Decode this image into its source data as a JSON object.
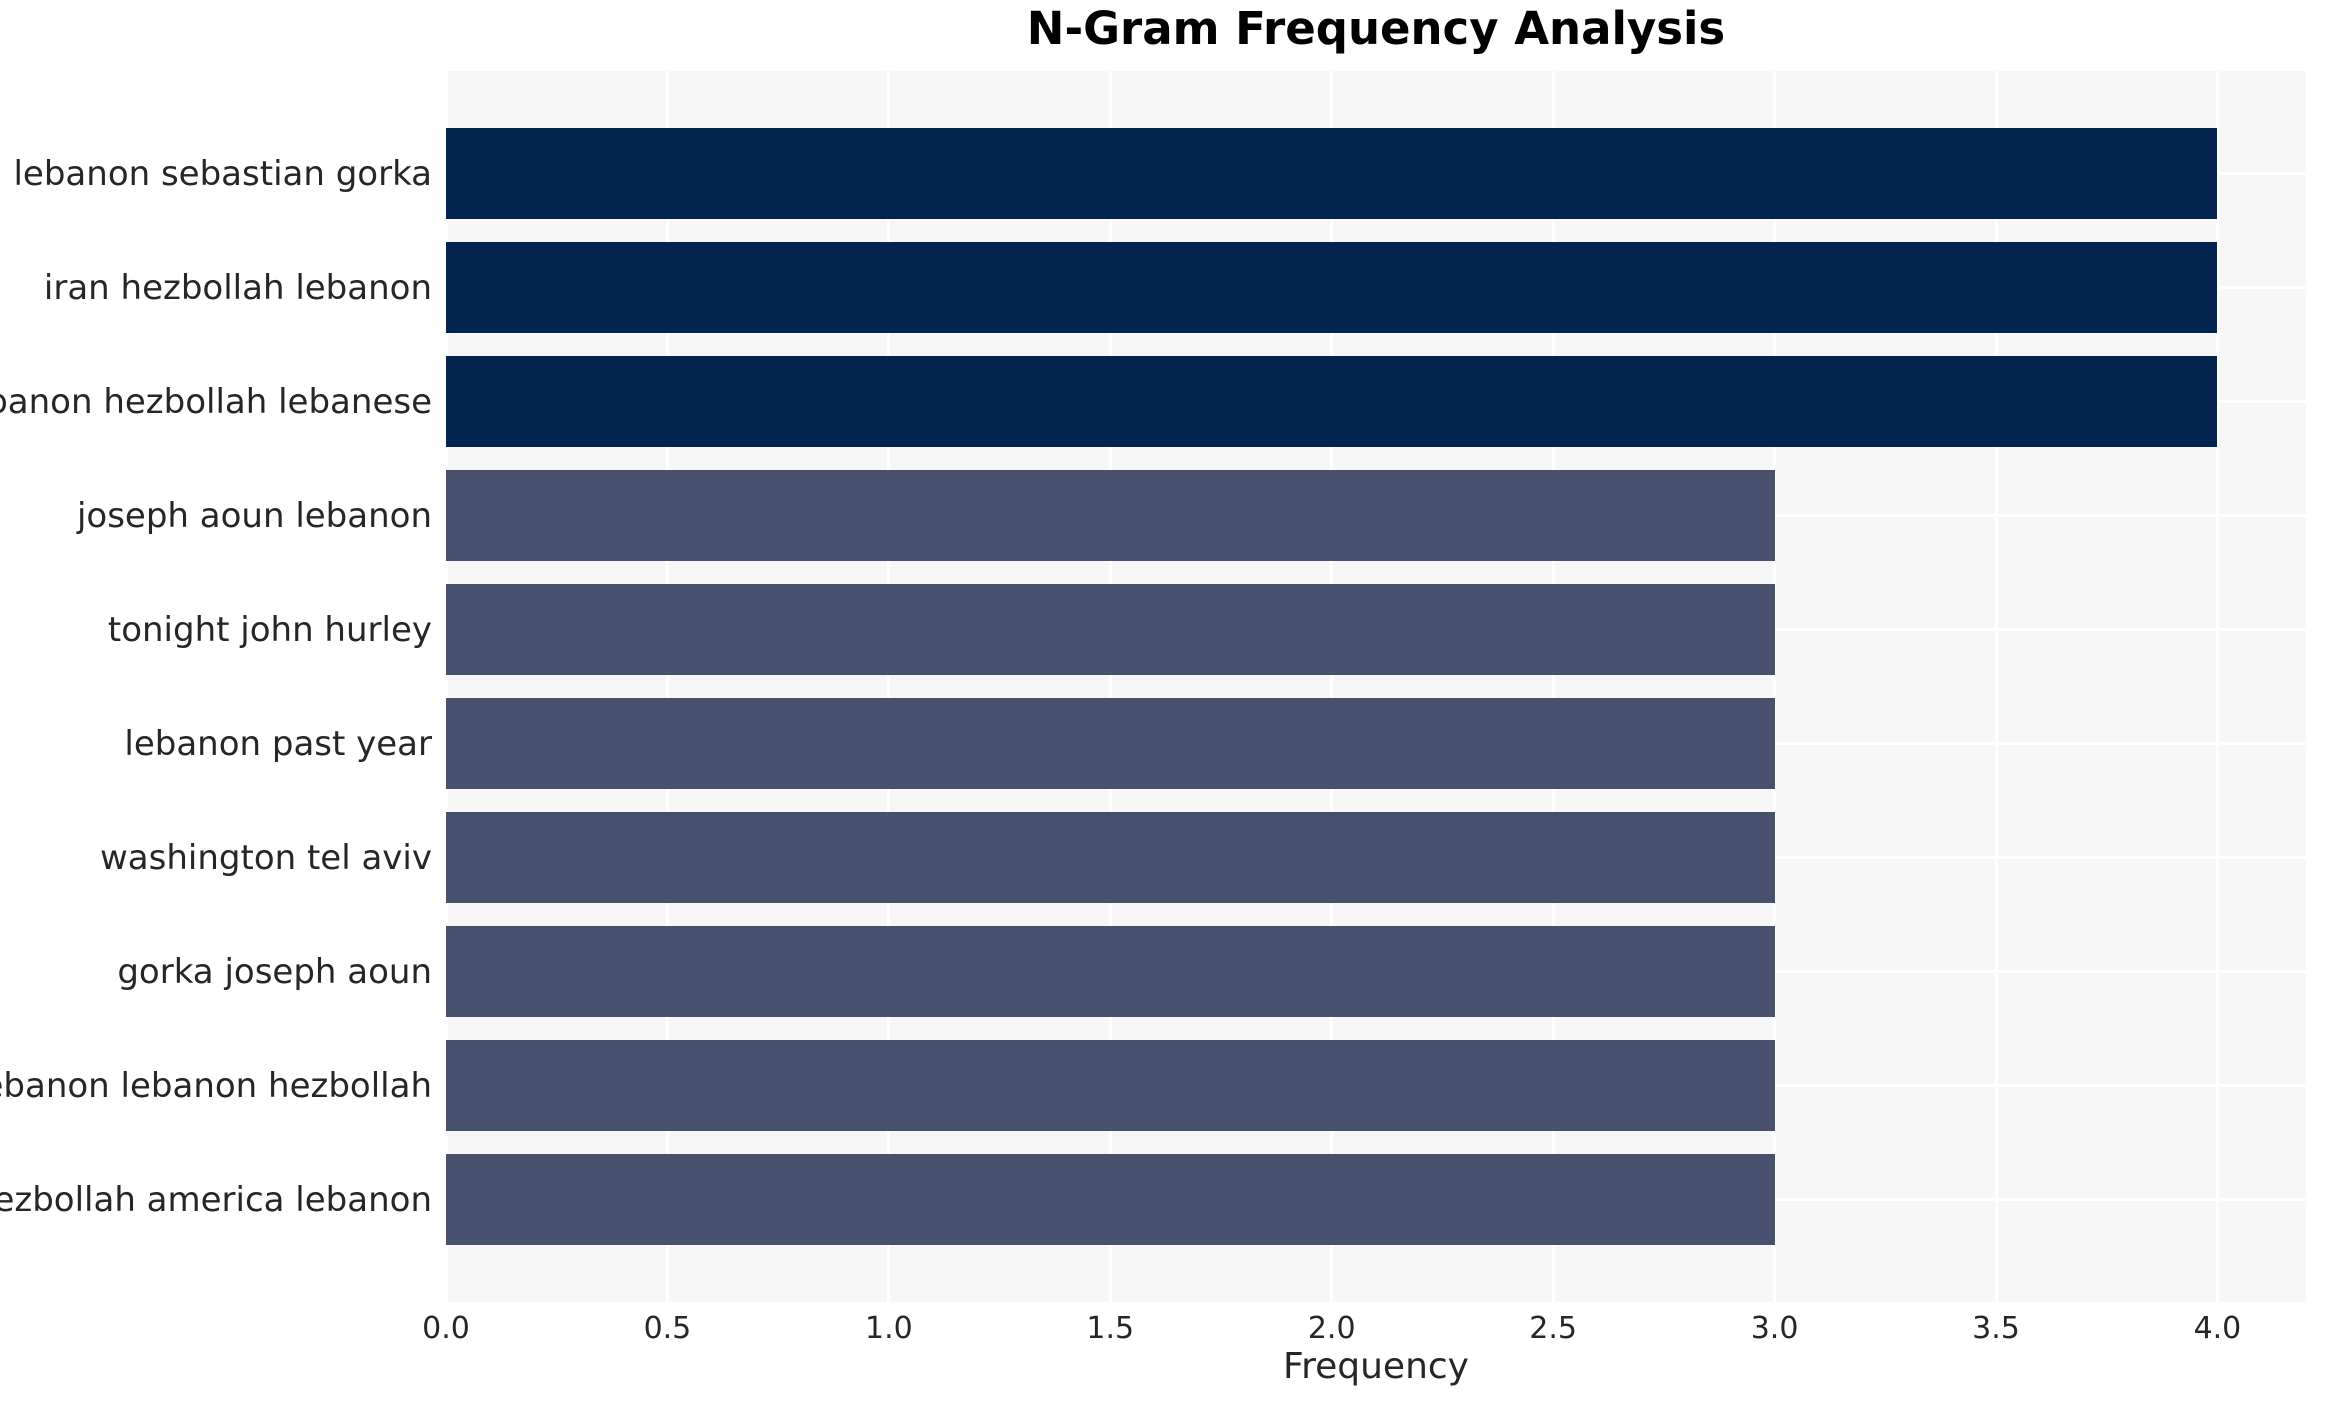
{
  "chart_data": {
    "type": "bar",
    "orientation": "horizontal",
    "title": "N-Gram Frequency Analysis",
    "xlabel": "Frequency",
    "ylabel": "",
    "categories": [
      "lebanon sebastian gorka",
      "iran hezbollah lebanon",
      "lebanon hezbollah lebanese",
      "joseph aoun lebanon",
      "tonight john hurley",
      "lebanon past year",
      "washington tel aviv",
      "gorka joseph aoun",
      "lebanon lebanon hezbollah",
      "hezbollah america lebanon"
    ],
    "values": [
      4,
      4,
      4,
      3,
      3,
      3,
      3,
      3,
      3,
      3
    ],
    "bar_colors": [
      "#02244e",
      "#02244e",
      "#02244e",
      "#47506c",
      "#47506c",
      "#47506c",
      "#47506c",
      "#47506c",
      "#47506c",
      "#47506c"
    ],
    "xticks": [
      "0.0",
      "0.5",
      "1.0",
      "1.5",
      "2.0",
      "2.5",
      "3.0",
      "3.5",
      "4.0"
    ],
    "xtick_values": [
      0.0,
      0.5,
      1.0,
      1.5,
      2.0,
      2.5,
      3.0,
      3.5,
      4.0
    ],
    "xlim": [
      0,
      4.2
    ],
    "grid": true,
    "legend": false,
    "style": {
      "plot_bg": "#f7f7f7",
      "grid_color": "#ffffff",
      "tick_text_color": "#262626",
      "title_color": "#000000"
    }
  }
}
